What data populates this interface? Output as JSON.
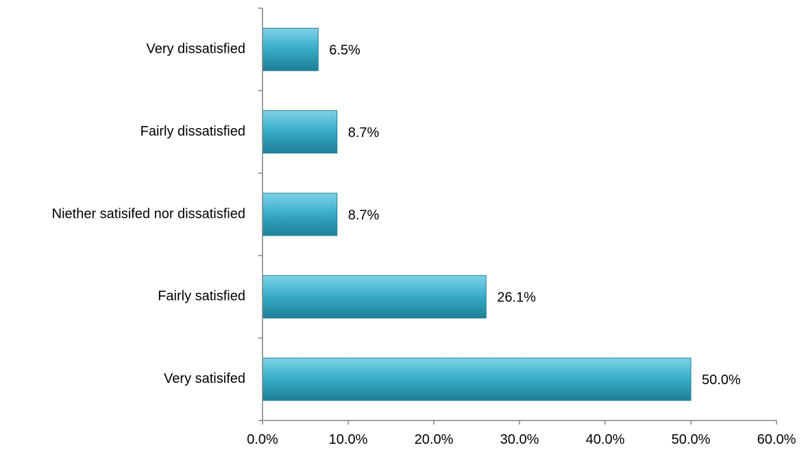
{
  "chart_data": {
    "type": "bar",
    "orientation": "horizontal",
    "categories": [
      "Very dissatisfied",
      "Fairly dissatisfied",
      "Niether satisifed nor dissatisfied",
      "Fairly satisfied",
      "Very satisifed"
    ],
    "values": [
      6.5,
      8.7,
      8.7,
      26.1,
      50.0
    ],
    "value_labels": [
      "6.5%",
      "8.7%",
      "8.7%",
      "26.1%",
      "50.0%"
    ],
    "xlim": [
      0,
      60
    ],
    "x_ticks": [
      0,
      10,
      20,
      30,
      40,
      50,
      60
    ],
    "x_tick_labels": [
      "0.0%",
      "10.0%",
      "20.0%",
      "30.0%",
      "40.0%",
      "50.0%",
      "60.0%"
    ],
    "title": "",
    "xlabel": "",
    "ylabel": "",
    "grid": false,
    "legend": "none",
    "bar_color": "#3AAFCB",
    "bar_color_light": "#7FD3E6",
    "bar_color_dark": "#1F7F97"
  }
}
